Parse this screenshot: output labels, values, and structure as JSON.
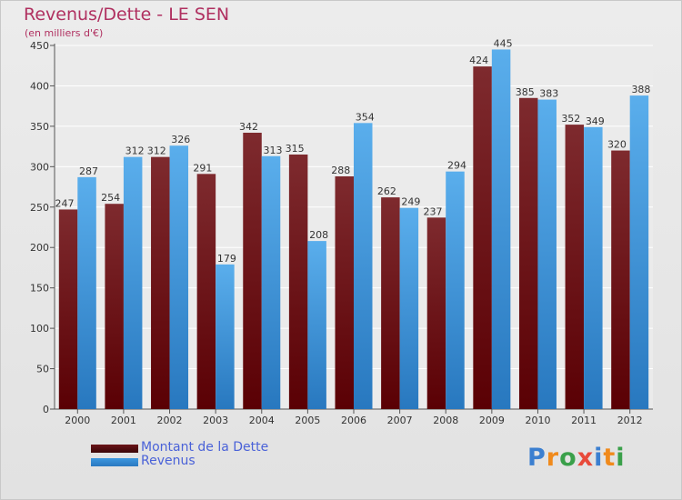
{
  "title": "Revenus/Dette - LE SEN",
  "subtitle": "(en milliers d'€)",
  "logo": {
    "text": "Proxiti",
    "colors": [
      "#3b7fd0",
      "#f08a1c",
      "#3aa04a",
      "#e84a3a",
      "#3b7fd0",
      "#f08a1c",
      "#3aa04a"
    ]
  },
  "chart_data": {
    "type": "bar",
    "categories": [
      "2000",
      "2001",
      "2002",
      "2003",
      "2004",
      "2005",
      "2006",
      "2007",
      "2008",
      "2009",
      "2010",
      "2011",
      "2012"
    ],
    "series": [
      {
        "name": "Montant de la Dette",
        "color": "#6b1418",
        "values": [
          247,
          254,
          312,
          291,
          342,
          315,
          288,
          262,
          237,
          424,
          385,
          352,
          320
        ]
      },
      {
        "name": "Revenus",
        "color": "#3c98e0",
        "values": [
          287,
          312,
          326,
          179,
          313,
          208,
          354,
          249,
          294,
          445,
          383,
          349,
          388
        ]
      }
    ],
    "ylim": [
      0,
      450
    ],
    "yticks": [
      0,
      50,
      100,
      150,
      200,
      250,
      300,
      350,
      400,
      450
    ],
    "grid": true,
    "legend": "bottom-left"
  }
}
